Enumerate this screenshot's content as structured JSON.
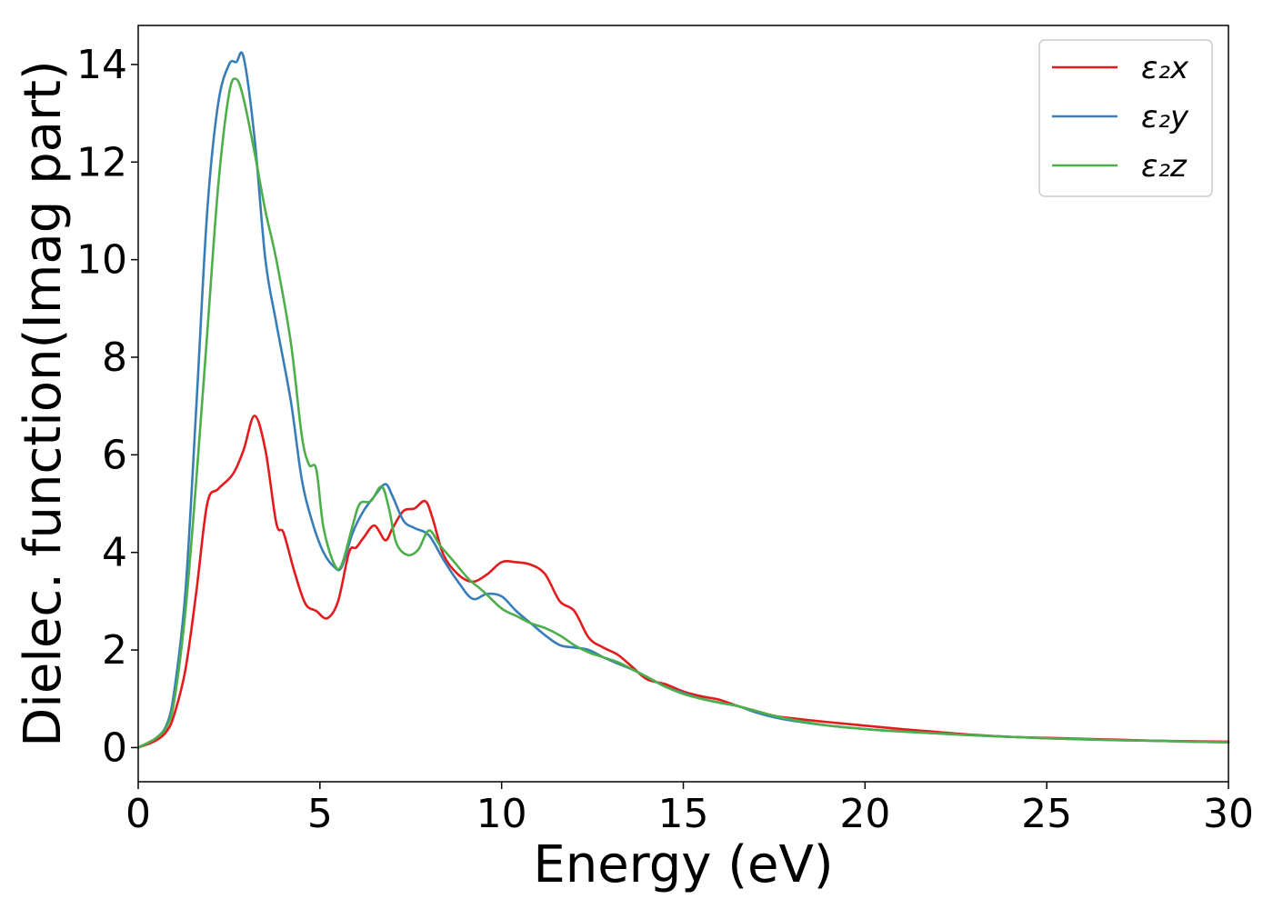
{
  "chart_data": {
    "type": "line",
    "xlabel": "Energy (eV)",
    "ylabel": "Dielec. function(Imag part)",
    "xlim": [
      0,
      30
    ],
    "ylim": [
      -0.7,
      14.8
    ],
    "xticks": [
      0,
      5,
      10,
      15,
      20,
      25,
      30
    ],
    "yticks": [
      0,
      2,
      4,
      6,
      8,
      10,
      12,
      14
    ],
    "grid": false,
    "legend_position": "top-right",
    "legend_labels": [
      "ε₂x",
      "ε₂y",
      "ε₂z"
    ],
    "series": [
      {
        "name": "ε₂x",
        "color": "#e41a1c",
        "x": [
          0,
          0.5,
          0.8,
          1.0,
          1.3,
          1.6,
          1.9,
          2.2,
          2.6,
          2.9,
          3.2,
          3.5,
          3.8,
          4.0,
          4.3,
          4.6,
          4.9,
          5.2,
          5.5,
          5.8,
          6.0,
          6.2,
          6.5,
          6.8,
          7.0,
          7.3,
          7.6,
          7.9,
          8.1,
          8.4,
          8.8,
          9.2,
          9.6,
          10.0,
          10.4,
          10.8,
          11.2,
          11.6,
          12.0,
          12.4,
          12.8,
          13.2,
          13.6,
          14.0,
          14.5,
          15.0,
          15.5,
          16.0,
          16.5,
          17.0,
          17.5,
          18.0,
          19.0,
          20.0,
          21.0,
          22.0,
          23.0,
          24.0,
          25.0,
          26.0,
          27.0,
          28.0,
          29.0,
          30.0
        ],
        "y": [
          0.0,
          0.15,
          0.35,
          0.7,
          1.6,
          3.2,
          5.0,
          5.3,
          5.6,
          6.1,
          6.8,
          6.1,
          4.6,
          4.4,
          3.6,
          2.95,
          2.8,
          2.65,
          3.0,
          4.0,
          4.1,
          4.3,
          4.55,
          4.25,
          4.5,
          4.85,
          4.9,
          5.05,
          4.7,
          3.95,
          3.55,
          3.4,
          3.55,
          3.8,
          3.8,
          3.75,
          3.55,
          3.0,
          2.8,
          2.25,
          2.05,
          1.9,
          1.65,
          1.4,
          1.3,
          1.15,
          1.05,
          0.98,
          0.85,
          0.75,
          0.65,
          0.6,
          0.52,
          0.45,
          0.38,
          0.32,
          0.26,
          0.22,
          0.2,
          0.18,
          0.16,
          0.14,
          0.13,
          0.12
        ]
      },
      {
        "name": "ε₂y",
        "color": "#377eb8",
        "x": [
          0,
          0.5,
          0.8,
          1.0,
          1.3,
          1.6,
          1.9,
          2.2,
          2.5,
          2.7,
          2.9,
          3.2,
          3.5,
          3.8,
          4.2,
          4.5,
          4.8,
          5.1,
          5.4,
          5.6,
          5.9,
          6.2,
          6.5,
          6.8,
          7.0,
          7.3,
          7.6,
          8.0,
          8.4,
          8.8,
          9.2,
          9.6,
          10.0,
          10.4,
          10.8,
          11.2,
          11.6,
          12.0,
          12.4,
          12.8,
          13.2,
          13.6,
          14.0,
          14.5,
          15.0,
          15.5,
          16.0,
          16.5,
          17.0,
          17.5,
          18.0,
          19.0,
          20.0,
          21.0,
          22.0,
          23.0,
          24.0,
          25.0,
          26.0,
          27.0,
          28.0,
          29.0,
          30.0
        ],
        "y": [
          0.0,
          0.2,
          0.5,
          1.2,
          3.2,
          7.0,
          11.0,
          13.2,
          14.0,
          14.05,
          14.15,
          12.5,
          10.0,
          8.7,
          7.1,
          5.5,
          4.6,
          4.0,
          3.7,
          3.7,
          4.4,
          4.85,
          5.15,
          5.4,
          5.15,
          4.65,
          4.5,
          4.35,
          3.85,
          3.4,
          3.05,
          3.15,
          3.1,
          2.8,
          2.55,
          2.3,
          2.1,
          2.05,
          2.0,
          1.85,
          1.72,
          1.6,
          1.45,
          1.25,
          1.12,
          1.0,
          0.92,
          0.85,
          0.72,
          0.62,
          0.55,
          0.45,
          0.38,
          0.33,
          0.29,
          0.25,
          0.22,
          0.19,
          0.17,
          0.15,
          0.14,
          0.12,
          0.11
        ]
      },
      {
        "name": "ε₂z",
        "color": "#4daf4a",
        "x": [
          0,
          0.5,
          0.8,
          1.0,
          1.3,
          1.6,
          1.9,
          2.2,
          2.5,
          2.7,
          2.9,
          3.2,
          3.5,
          3.8,
          4.2,
          4.5,
          4.7,
          4.9,
          5.1,
          5.4,
          5.6,
          5.9,
          6.1,
          6.4,
          6.7,
          6.9,
          7.1,
          7.4,
          7.7,
          8.0,
          8.3,
          8.7,
          9.1,
          9.5,
          10.0,
          10.4,
          10.8,
          11.2,
          11.6,
          12.0,
          12.4,
          12.8,
          13.2,
          13.6,
          14.0,
          14.5,
          15.0,
          15.5,
          16.0,
          16.5,
          17.0,
          17.5,
          18.0,
          19.0,
          20.0,
          21.0,
          22.0,
          23.0,
          24.0,
          25.0,
          26.0,
          27.0,
          28.0,
          29.0,
          30.0
        ],
        "y": [
          0.0,
          0.2,
          0.45,
          1.0,
          2.8,
          5.5,
          8.5,
          11.5,
          13.4,
          13.7,
          13.3,
          12.2,
          11.0,
          10.0,
          8.3,
          6.4,
          5.8,
          5.7,
          4.5,
          3.75,
          3.75,
          4.55,
          5.0,
          5.05,
          5.35,
          4.9,
          4.2,
          3.95,
          4.05,
          4.45,
          4.15,
          3.8,
          3.45,
          3.2,
          2.85,
          2.7,
          2.55,
          2.45,
          2.3,
          2.1,
          1.95,
          1.85,
          1.75,
          1.6,
          1.45,
          1.25,
          1.1,
          1.0,
          0.92,
          0.85,
          0.75,
          0.65,
          0.57,
          0.45,
          0.38,
          0.33,
          0.29,
          0.25,
          0.22,
          0.19,
          0.17,
          0.15,
          0.14,
          0.12,
          0.11
        ]
      }
    ]
  }
}
